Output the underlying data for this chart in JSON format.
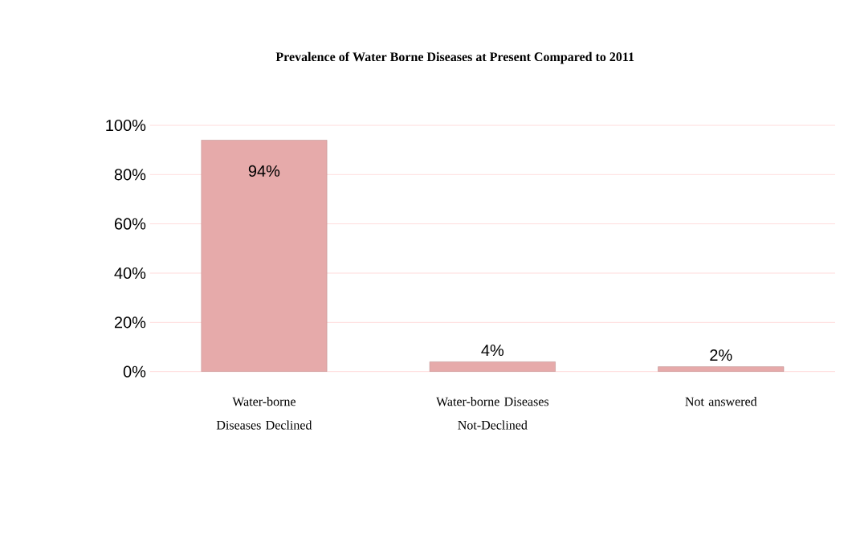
{
  "chart_data": {
    "type": "bar",
    "title": "Prevalence of Water Borne Diseases at Present Compared to 2011",
    "categories": [
      "Water-borne Diseases Declined",
      "Water-borne Diseases Not-Declined",
      "Not answered"
    ],
    "values": [
      94,
      4,
      2
    ],
    "color": "#e6aaaa",
    "value_labels": [
      "94%",
      "4%",
      "2%"
    ],
    "ylim": [
      0,
      100
    ],
    "yticks": [
      {
        "value": 0,
        "label": "0%"
      },
      {
        "value": 20,
        "label": "20%"
      },
      {
        "value": 40,
        "label": "40%"
      },
      {
        "value": 60,
        "label": "60%"
      },
      {
        "value": 80,
        "label": "80%"
      },
      {
        "value": 100,
        "label": "100%"
      }
    ],
    "grid": "y"
  }
}
